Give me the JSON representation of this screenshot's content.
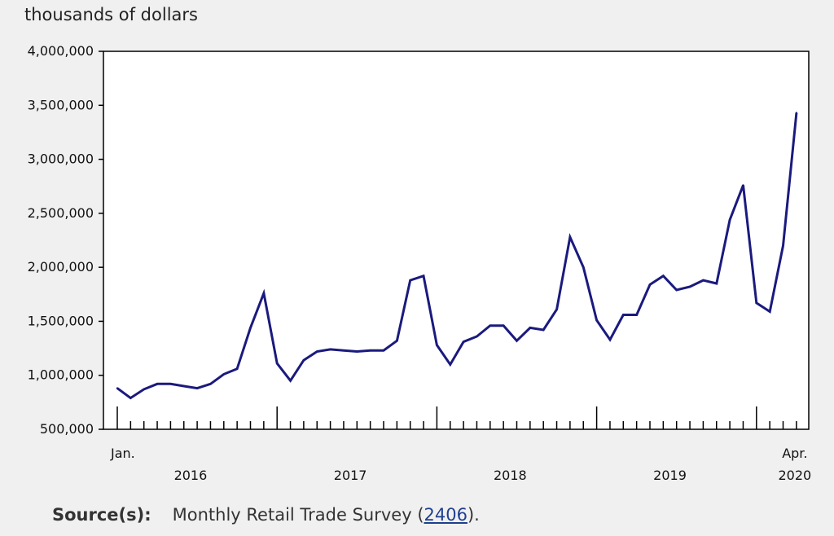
{
  "chart_data": {
    "type": "line",
    "ylabel": "thousands of dollars",
    "ylim": [
      500000,
      4000000
    ],
    "yticks": [
      500000,
      1000000,
      1500000,
      2000000,
      2500000,
      3000000,
      3500000,
      4000000
    ],
    "ytick_labels": [
      "500,000",
      "1,000,000",
      "1,500,000",
      "2,000,000",
      "2,500,000",
      "3,000,000",
      "3,500,000",
      "4,000,000"
    ],
    "grid": false,
    "x_start_label": "Jan.",
    "x_end_label": "Apr.",
    "year_labels": [
      "2016",
      "2017",
      "2018",
      "2019",
      "2020"
    ],
    "x": [
      "2016-01",
      "2016-02",
      "2016-03",
      "2016-04",
      "2016-05",
      "2016-06",
      "2016-07",
      "2016-08",
      "2016-09",
      "2016-10",
      "2016-11",
      "2016-12",
      "2017-01",
      "2017-02",
      "2017-03",
      "2017-04",
      "2017-05",
      "2017-06",
      "2017-07",
      "2017-08",
      "2017-09",
      "2017-10",
      "2017-11",
      "2017-12",
      "2018-01",
      "2018-02",
      "2018-03",
      "2018-04",
      "2018-05",
      "2018-06",
      "2018-07",
      "2018-08",
      "2018-09",
      "2018-10",
      "2018-11",
      "2018-12",
      "2019-01",
      "2019-02",
      "2019-03",
      "2019-04",
      "2019-05",
      "2019-06",
      "2019-07",
      "2019-08",
      "2019-09",
      "2019-10",
      "2019-11",
      "2019-12",
      "2020-01",
      "2020-02",
      "2020-03",
      "2020-04"
    ],
    "series": [
      {
        "color": "#1a1a7e",
        "values": [
          880000,
          790000,
          870000,
          920000,
          920000,
          900000,
          880000,
          920000,
          1010000,
          1060000,
          1440000,
          1760000,
          1110000,
          950000,
          1140000,
          1220000,
          1240000,
          1230000,
          1220000,
          1230000,
          1230000,
          1320000,
          1880000,
          1920000,
          1280000,
          1100000,
          1310000,
          1360000,
          1460000,
          1460000,
          1320000,
          1440000,
          1420000,
          1610000,
          2280000,
          2000000,
          1510000,
          1330000,
          1560000,
          1560000,
          1840000,
          1920000,
          1790000,
          1820000,
          1880000,
          1850000,
          2440000,
          2760000,
          1670000,
          1590000,
          2200000,
          3430000
        ]
      }
    ]
  },
  "source": {
    "label": "Source(s):",
    "text": "Monthly Retail Trade Survey (",
    "link": "2406",
    "end": ")."
  }
}
